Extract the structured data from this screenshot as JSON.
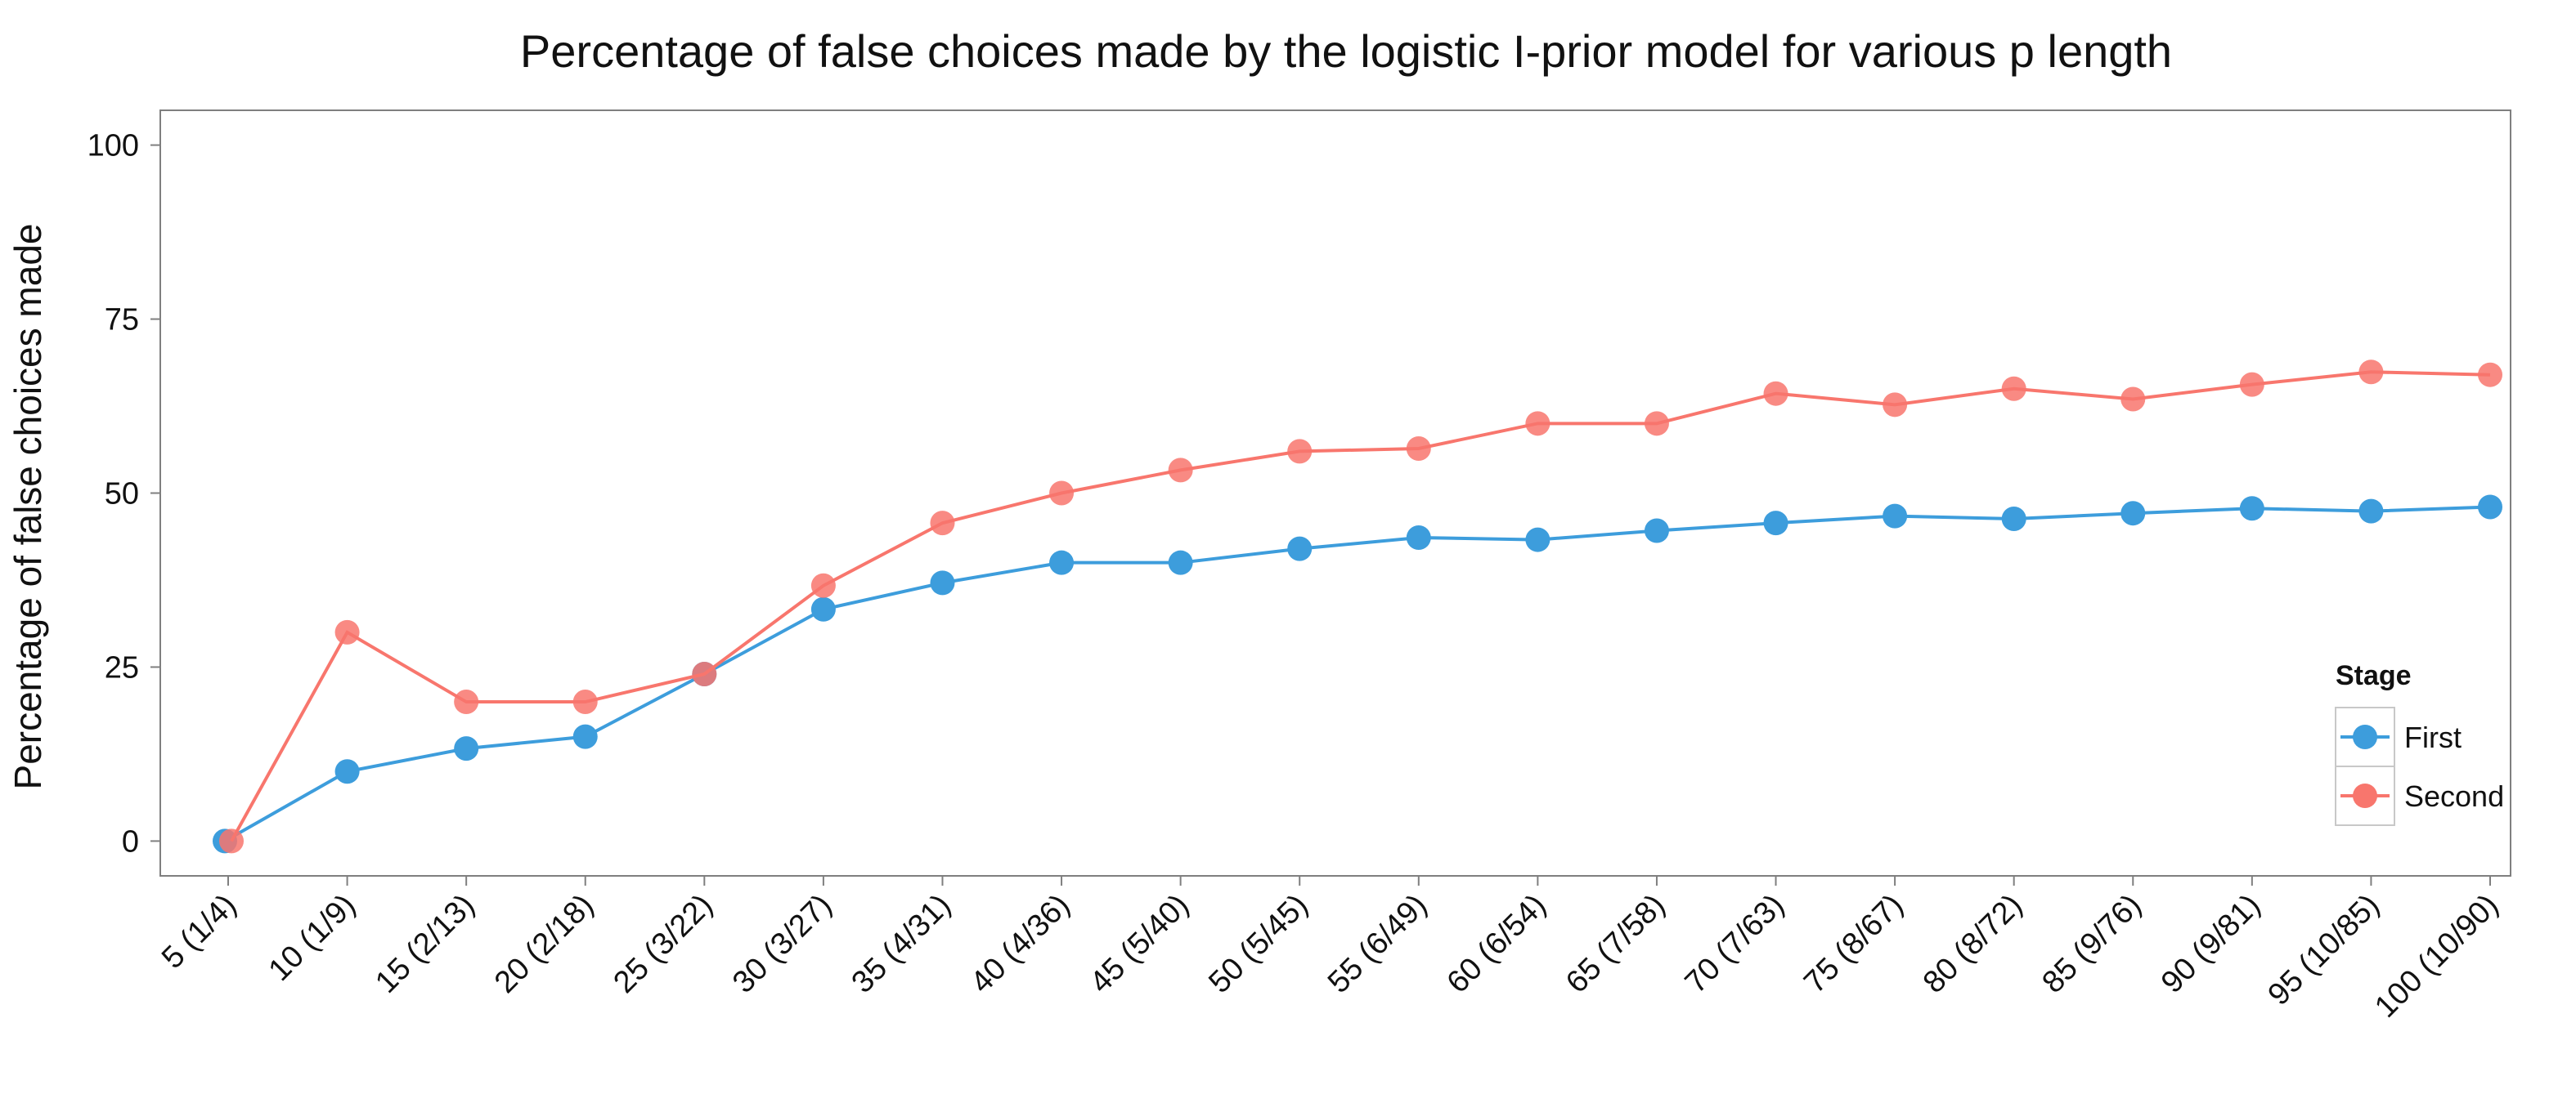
{
  "chart_data": {
    "type": "line",
    "title": "Percentage of false choices made by the logistic I-prior model for various p length",
    "xlabel": "",
    "ylabel": "Percentage of false choices made",
    "categories": [
      "5 (1/4)",
      "10 (1/9)",
      "15 (2/13)",
      "20 (2/18)",
      "25 (3/22)",
      "30 (3/27)",
      "35 (4/31)",
      "40 (4/36)",
      "45 (5/40)",
      "50 (5/45)",
      "55 (6/49)",
      "60 (6/54)",
      "65 (7/58)",
      "70 (7/63)",
      "75 (8/67)",
      "80 (8/72)",
      "85 (9/76)",
      "90 (9/81)",
      "95 (10/85)",
      "100 (10/90)"
    ],
    "ylim": [
      -5,
      105
    ],
    "yticks": [
      0,
      25,
      50,
      75,
      100
    ],
    "grid": false,
    "legend": {
      "title": "Stage",
      "placement": "bottom-right"
    },
    "series": [
      {
        "name": "First",
        "color": "#3d9ddc",
        "values": [
          0,
          10,
          13.3,
          15,
          24,
          33.3,
          37.1,
          40,
          40,
          42,
          43.6,
          43.3,
          44.6,
          45.7,
          46.7,
          46.3,
          47.1,
          47.8,
          47.4,
          48
        ]
      },
      {
        "name": "Second",
        "color": "#f8766d",
        "values": [
          0,
          30,
          20,
          20,
          24,
          36.7,
          45.7,
          50,
          53.3,
          56,
          56.4,
          60,
          60,
          64.3,
          62.7,
          65,
          63.5,
          65.6,
          67.4,
          67
        ]
      }
    ]
  }
}
